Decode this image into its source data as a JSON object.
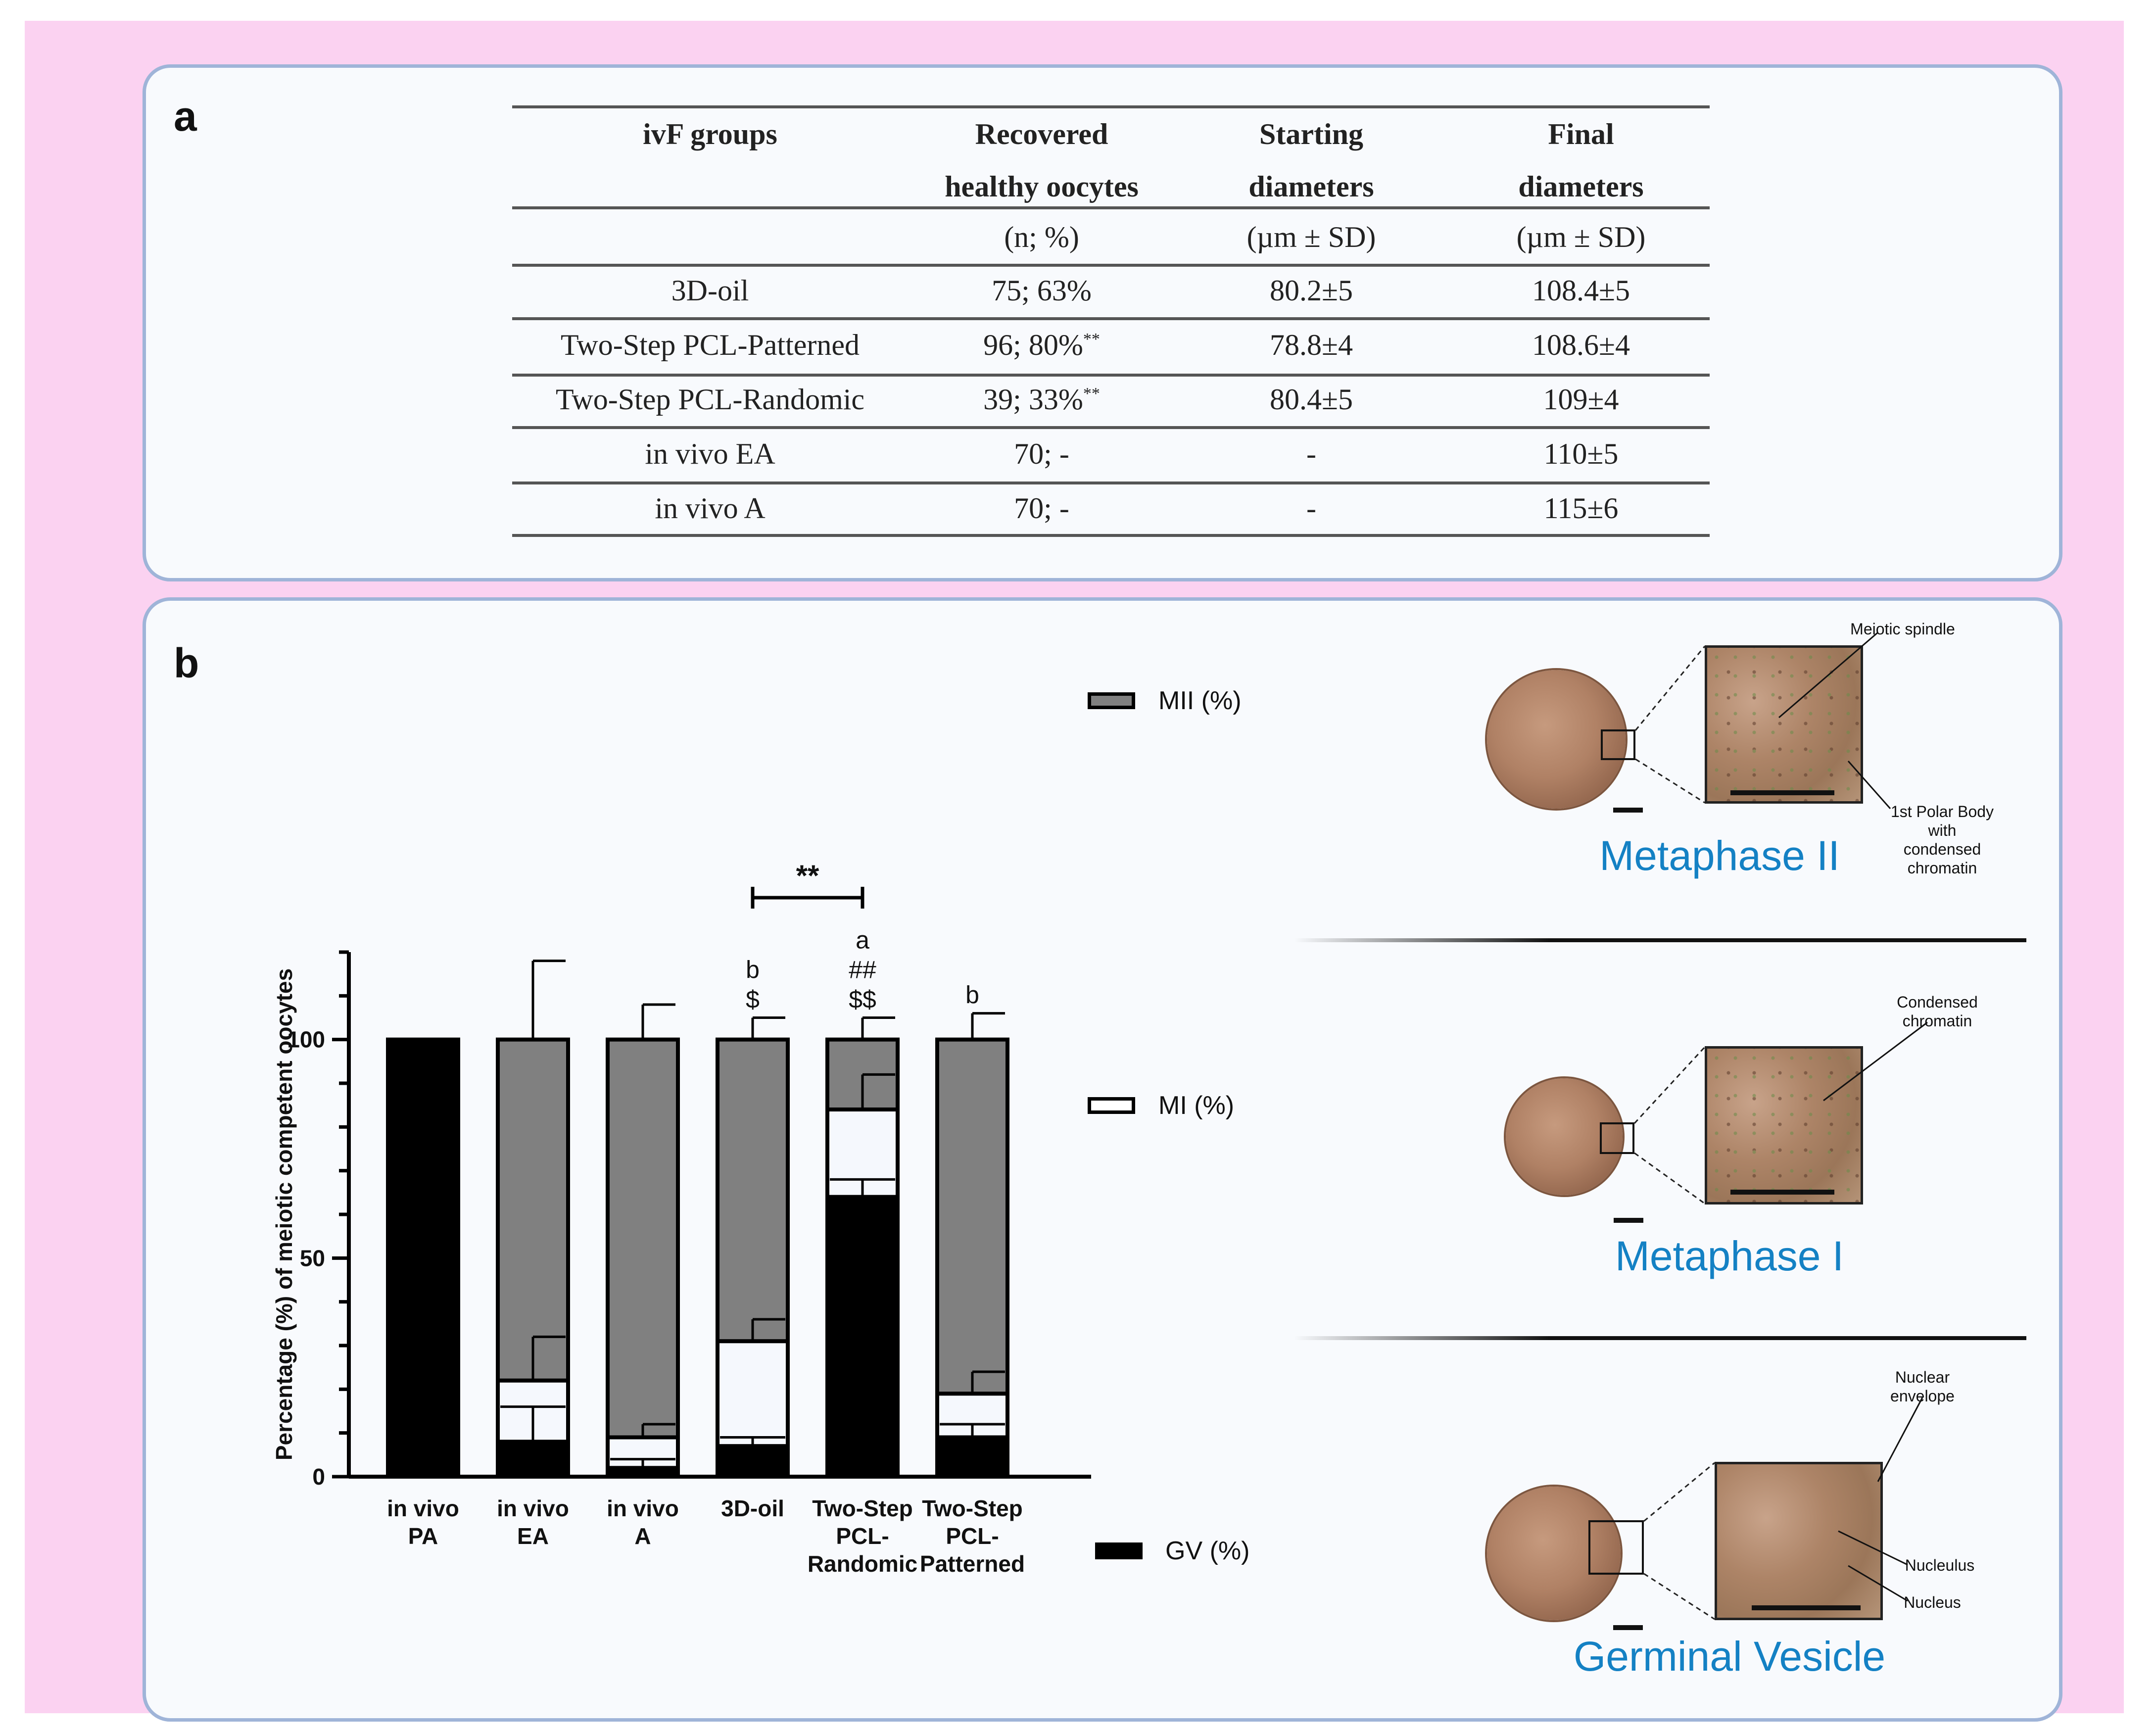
{
  "panel_a": {
    "letter": "a",
    "headers": [
      [
        "ivF groups",
        ""
      ],
      [
        "Recovered",
        "healthy oocytes"
      ],
      [
        "Starting",
        "diameters"
      ],
      [
        "Final",
        "diameters"
      ]
    ],
    "subheaders": [
      "",
      "(n; %)",
      "(µm ± SD)",
      "(µm ± SD)"
    ],
    "rows": [
      {
        "group": "3D-oil",
        "recovered": "75; 63%",
        "sup": "",
        "starting": "80.2±5",
        "final": "108.4±5"
      },
      {
        "group": "Two-Step PCL-Patterned",
        "recovered": "96; 80%",
        "sup": "**",
        "starting": "78.8±4",
        "final": "108.6±4"
      },
      {
        "group": "Two-Step PCL-Randomic",
        "recovered": "39; 33%",
        "sup": "**",
        "starting": "80.4±5",
        "final": "109±4"
      },
      {
        "group": "in vivo EA",
        "recovered": "70; -",
        "sup": "",
        "starting": "-",
        "final": "110±5"
      },
      {
        "group": "in vivo A",
        "recovered": "70; -",
        "sup": "",
        "starting": "-",
        "final": "115±6"
      }
    ]
  },
  "panel_b": {
    "letter": "b",
    "phases": {
      "mii": {
        "title": "Metaphase II",
        "annotations": [
          "Meiotic spindle",
          "1st Polar Body\nwith\ncondensed\nchromatin"
        ]
      },
      "mi": {
        "title": "Metaphase I",
        "annotations": [
          "Condensed\nchromatin"
        ]
      },
      "gv": {
        "title": "Germinal Vesicle",
        "annotations": [
          "Nuclear\nenvelope",
          "Nucleulus",
          "Nucleus"
        ]
      }
    }
  },
  "chart_data": {
    "type": "bar",
    "stacked": true,
    "ylabel": "Percentage (%) of meiotic competent oocytes",
    "ylim": [
      0,
      120
    ],
    "yticks": [
      0,
      50,
      100
    ],
    "categories": [
      [
        "in vivo",
        "PA"
      ],
      [
        "in vivo",
        "EA"
      ],
      [
        "in vivo",
        "A"
      ],
      [
        "3D-oil"
      ],
      [
        "Two-Step",
        "PCL-",
        "Randomic"
      ],
      [
        "Two-Step",
        "PCL-",
        "Patterned"
      ]
    ],
    "series": [
      {
        "name": "GV (%)",
        "color": "#000000",
        "values": [
          100,
          8,
          2,
          7,
          64,
          9
        ],
        "errors": [
          0,
          0,
          0,
          0,
          0,
          0
        ]
      },
      {
        "name": "MI (%)",
        "color": "#f5f8fd",
        "values": [
          0,
          14,
          7,
          24,
          20,
          10
        ],
        "errors": [
          0,
          8,
          3,
          3,
          4,
          3
        ]
      },
      {
        "name": "MII (%)",
        "color": "#808080",
        "values": [
          0,
          78,
          91,
          69,
          16,
          81
        ],
        "errors": [
          0,
          10,
          8,
          4,
          9,
          3
        ]
      }
    ],
    "mi_errors_top": [
      0,
      10,
      3,
      5,
      8,
      5
    ],
    "mi_errors_bottom": [
      0,
      8,
      2,
      2,
      4,
      3
    ],
    "total_errors": [
      0,
      18,
      8,
      5,
      5,
      6
    ],
    "bar_labels": [
      [],
      [],
      [],
      [
        "b",
        "$"
      ],
      [
        "a",
        "##",
        "$$"
      ],
      [
        "b"
      ]
    ],
    "significance": {
      "from": 3,
      "to": 4,
      "label": "**"
    },
    "legend": [
      "MII (%)",
      "MI (%)",
      "GV (%)"
    ]
  }
}
